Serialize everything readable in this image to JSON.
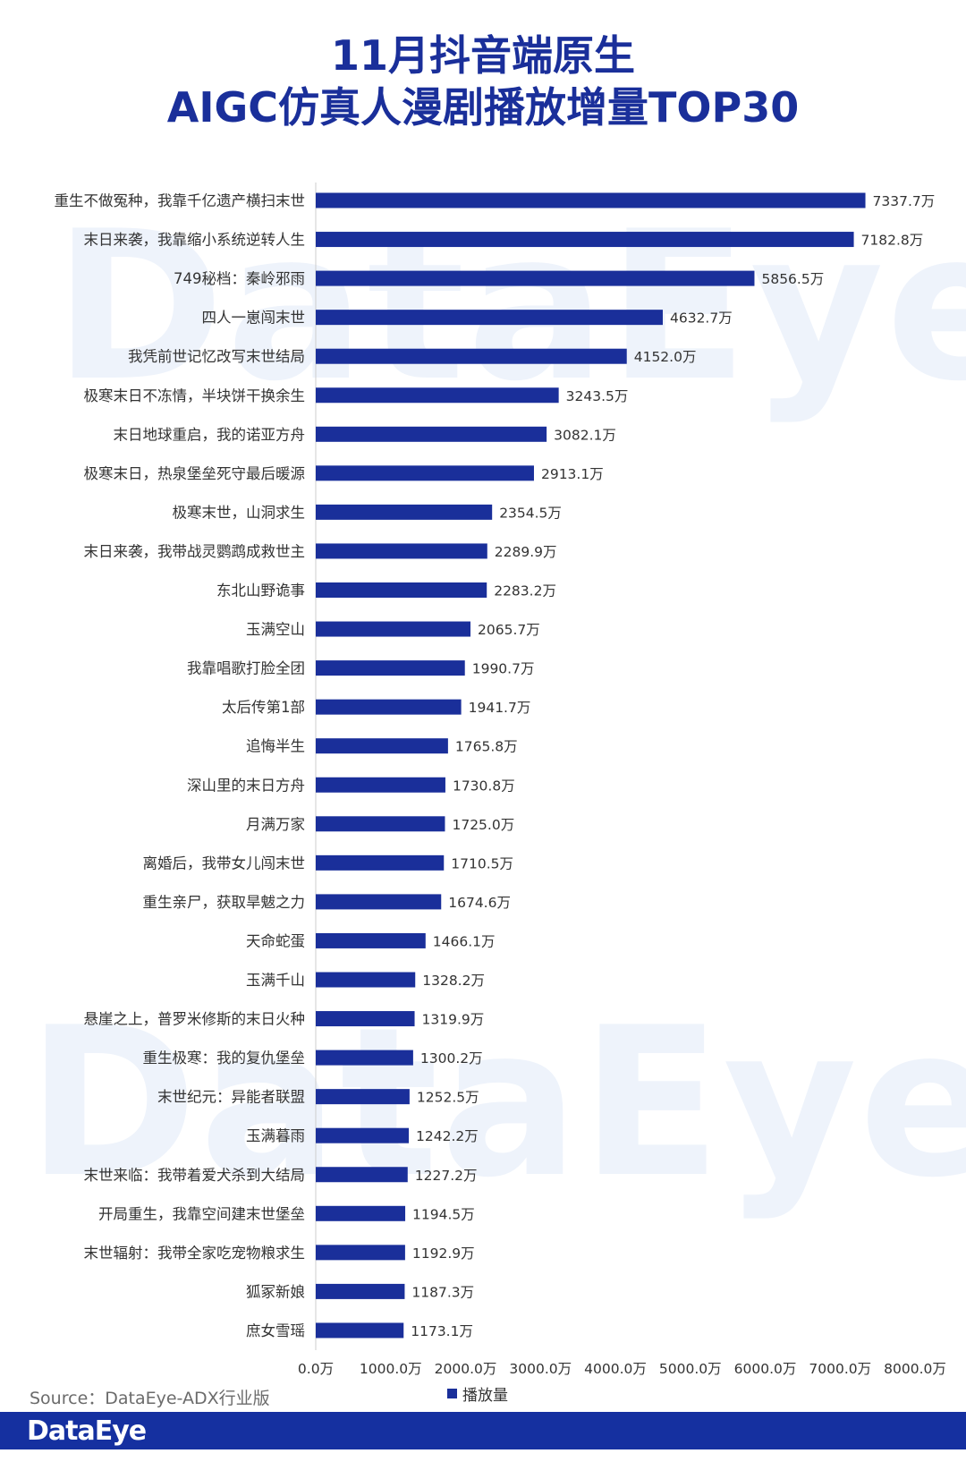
{
  "title_line1": "11月抖音端原生",
  "title_line2": "AIGC仿真人漫剧播放增量TOP30",
  "watermark": "DataEye",
  "source": "Source：DataEye-ADX行业版",
  "legend_label": "播放量",
  "footer_logo": "DataEye",
  "colors": {
    "bar": "#1a2f9a",
    "title": "#1a2f9a",
    "footer": "#1530a0"
  },
  "chart_data": {
    "type": "bar",
    "orientation": "horizontal",
    "title": "11月抖音端原生 AIGC仿真人漫剧播放增量TOP30",
    "xlim": [
      0,
      8000
    ],
    "x_ticks": [
      "0.0万",
      "1000.0万",
      "2000.0万",
      "3000.0万",
      "4000.0万",
      "5000.0万",
      "6000.0万",
      "7000.0万",
      "8000.0万"
    ],
    "x_tick_values": [
      0,
      1000,
      2000,
      3000,
      4000,
      5000,
      6000,
      7000,
      8000
    ],
    "legend": "bottom",
    "series": [
      {
        "name": "播放量"
      }
    ],
    "categories": [
      "重生不做冤种，我靠千亿遗产横扫末世",
      "末日来袭，我靠缩小系统逆转人生",
      "749秘档：秦岭邪雨",
      "四人一崽闯末世",
      "我凭前世记忆改写末世结局",
      "极寒末日不冻情，半块饼干换余生",
      "末日地球重启，我的诺亚方舟",
      "极寒末日，热泉堡垒死守最后暖源",
      "极寒末世，山洞求生",
      "末日来袭，我带战灵鹦鹉成救世主",
      "东北山野诡事",
      "玉满空山",
      "我靠唱歌打脸全团",
      "太后传第1部",
      "追悔半生",
      "深山里的末日方舟",
      "月满万家",
      "离婚后，我带女儿闯末世",
      "重生亲尸，获取旱魃之力",
      "天命蛇蛋",
      "玉满千山",
      "悬崖之上，普罗米修斯的末日火种",
      "重生极寒：我的复仇堡垒",
      "末世纪元：异能者联盟",
      "玉满暮雨",
      "末世来临：我带着爱犬杀到大结局",
      "开局重生，我靠空间建末世堡垒",
      "末世辐射：我带全家吃宠物粮求生",
      "狐冢新娘",
      "庶女雪瑶"
    ],
    "values": [
      7337.7,
      7182.8,
      5856.5,
      4632.7,
      4152.0,
      3243.5,
      3082.1,
      2913.1,
      2354.5,
      2289.9,
      2283.2,
      2065.7,
      1990.7,
      1941.7,
      1765.8,
      1730.8,
      1725.0,
      1710.5,
      1674.6,
      1466.1,
      1328.2,
      1319.9,
      1300.2,
      1252.5,
      1242.2,
      1227.2,
      1194.5,
      1192.9,
      1187.3,
      1173.1
    ],
    "value_labels": [
      "7337.7万",
      "7182.8万",
      "5856.5万",
      "4632.7万",
      "4152.0万",
      "3243.5万",
      "3082.1万",
      "2913.1万",
      "2354.5万",
      "2289.9万",
      "2283.2万",
      "2065.7万",
      "1990.7万",
      "1941.7万",
      "1765.8万",
      "1730.8万",
      "1725.0万",
      "1710.5万",
      "1674.6万",
      "1466.1万",
      "1328.2万",
      "1319.9万",
      "1300.2万",
      "1252.5万",
      "1242.2万",
      "1227.2万",
      "1194.5万",
      "1192.9万",
      "1187.3万",
      "1173.1万"
    ]
  }
}
